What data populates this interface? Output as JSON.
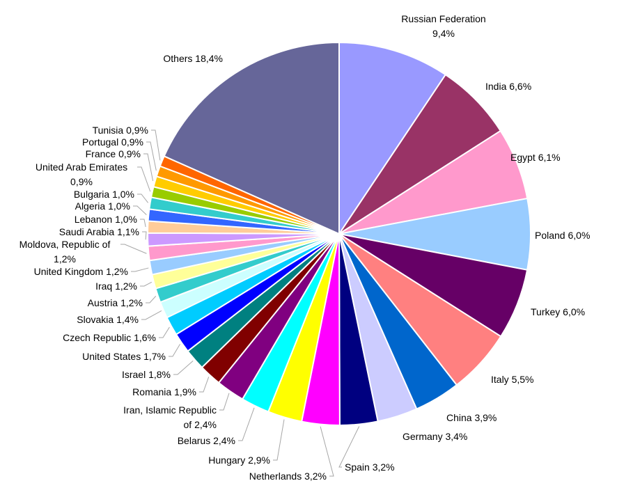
{
  "chart_data": {
    "type": "pie",
    "title": "",
    "start_angle_deg": 0,
    "direction": "clockwise",
    "slices": [
      {
        "label": "Russian Federation",
        "value": 9.4,
        "text": [
          "Russian Federation",
          "9,4%"
        ],
        "color": "#9999FF"
      },
      {
        "label": "India",
        "value": 6.6,
        "text": [
          "India 6,6%"
        ],
        "color": "#993366"
      },
      {
        "label": "Egypt",
        "value": 6.1,
        "text": [
          "Egypt 6,1%"
        ],
        "color": "#FF99CC"
      },
      {
        "label": "Poland",
        "value": 6.0,
        "text": [
          "Poland 6,0%"
        ],
        "color": "#99CCFF"
      },
      {
        "label": "Turkey",
        "value": 6.0,
        "text": [
          "Turkey 6,0%"
        ],
        "color": "#660066"
      },
      {
        "label": "Italy",
        "value": 5.5,
        "text": [
          "Italy 5,5%"
        ],
        "color": "#FF8080"
      },
      {
        "label": "China",
        "value": 3.9,
        "text": [
          "China 3,9%"
        ],
        "color": "#0066CC"
      },
      {
        "label": "Germany",
        "value": 3.4,
        "text": [
          "Germany 3,4%"
        ],
        "color": "#CCCCFF"
      },
      {
        "label": "Spain",
        "value": 3.2,
        "text": [
          "Spain 3,2%"
        ],
        "color": "#000080"
      },
      {
        "label": "Netherlands",
        "value": 3.2,
        "text": [
          "Netherlands 3,2%"
        ],
        "color": "#FF00FF"
      },
      {
        "label": "Hungary",
        "value": 2.9,
        "text": [
          "Hungary 2,9%"
        ],
        "color": "#FFFF00"
      },
      {
        "label": "Belarus",
        "value": 2.4,
        "text": [
          "Belarus 2,4%"
        ],
        "color": "#00FFFF"
      },
      {
        "label": "Iran, Islamic Republic of",
        "value": 2.4,
        "text": [
          "Iran, Islamic Republic",
          "of 2,4%"
        ],
        "color": "#800080"
      },
      {
        "label": "Romania",
        "value": 1.9,
        "text": [
          "Romania 1,9%"
        ],
        "color": "#800000"
      },
      {
        "label": "Israel",
        "value": 1.8,
        "text": [
          "Israel 1,8%"
        ],
        "color": "#008080"
      },
      {
        "label": "United States",
        "value": 1.7,
        "text": [
          "United States 1,7%"
        ],
        "color": "#0000FF"
      },
      {
        "label": "Czech Republic",
        "value": 1.6,
        "text": [
          "Czech Republic 1,6%"
        ],
        "color": "#00CCFF"
      },
      {
        "label": "Slovakia",
        "value": 1.4,
        "text": [
          "Slovakia 1,4%"
        ],
        "color": "#CCFFFF"
      },
      {
        "label": "Austria",
        "value": 1.2,
        "text": [
          "Austria 1,2%"
        ],
        "color": "#33CCCC"
      },
      {
        "label": "Iraq",
        "value": 1.2,
        "text": [
          "Iraq 1,2%"
        ],
        "color": "#FFFF99"
      },
      {
        "label": "United Kingdom",
        "value": 1.2,
        "text": [
          "United Kingdom 1,2%"
        ],
        "color": "#99CCFF"
      },
      {
        "label": "Moldova, Republic of",
        "value": 1.2,
        "text": [
          "Moldova, Republic of",
          "1,2%"
        ],
        "color": "#FF99CC"
      },
      {
        "label": "Saudi Arabia",
        "value": 1.1,
        "text": [
          "Saudi Arabia 1,1%"
        ],
        "color": "#CC99FF"
      },
      {
        "label": "Lebanon",
        "value": 1.0,
        "text": [
          "Lebanon 1,0%"
        ],
        "color": "#FFCC99"
      },
      {
        "label": "Algeria",
        "value": 1.0,
        "text": [
          "Algeria 1,0%"
        ],
        "color": "#3366FF"
      },
      {
        "label": "Bulgaria",
        "value": 1.0,
        "text": [
          "Bulgaria 1,0%"
        ],
        "color": "#33CCCC"
      },
      {
        "label": "United Arab Emirates",
        "value": 0.9,
        "text": [
          "United Arab Emirates",
          "0,9%"
        ],
        "color": "#99CC00"
      },
      {
        "label": "France",
        "value": 0.9,
        "text": [
          "France 0,9%"
        ],
        "color": "#FFCC00"
      },
      {
        "label": "Portugal",
        "value": 0.9,
        "text": [
          "Portugal 0,9%"
        ],
        "color": "#FF9900"
      },
      {
        "label": "Tunisia",
        "value": 0.9,
        "text": [
          "Tunisia 0,9%"
        ],
        "color": "#FF6600"
      },
      {
        "label": "Others",
        "value": 18.4,
        "text": [
          "Others 18,4%"
        ],
        "color": "#666699"
      }
    ]
  }
}
